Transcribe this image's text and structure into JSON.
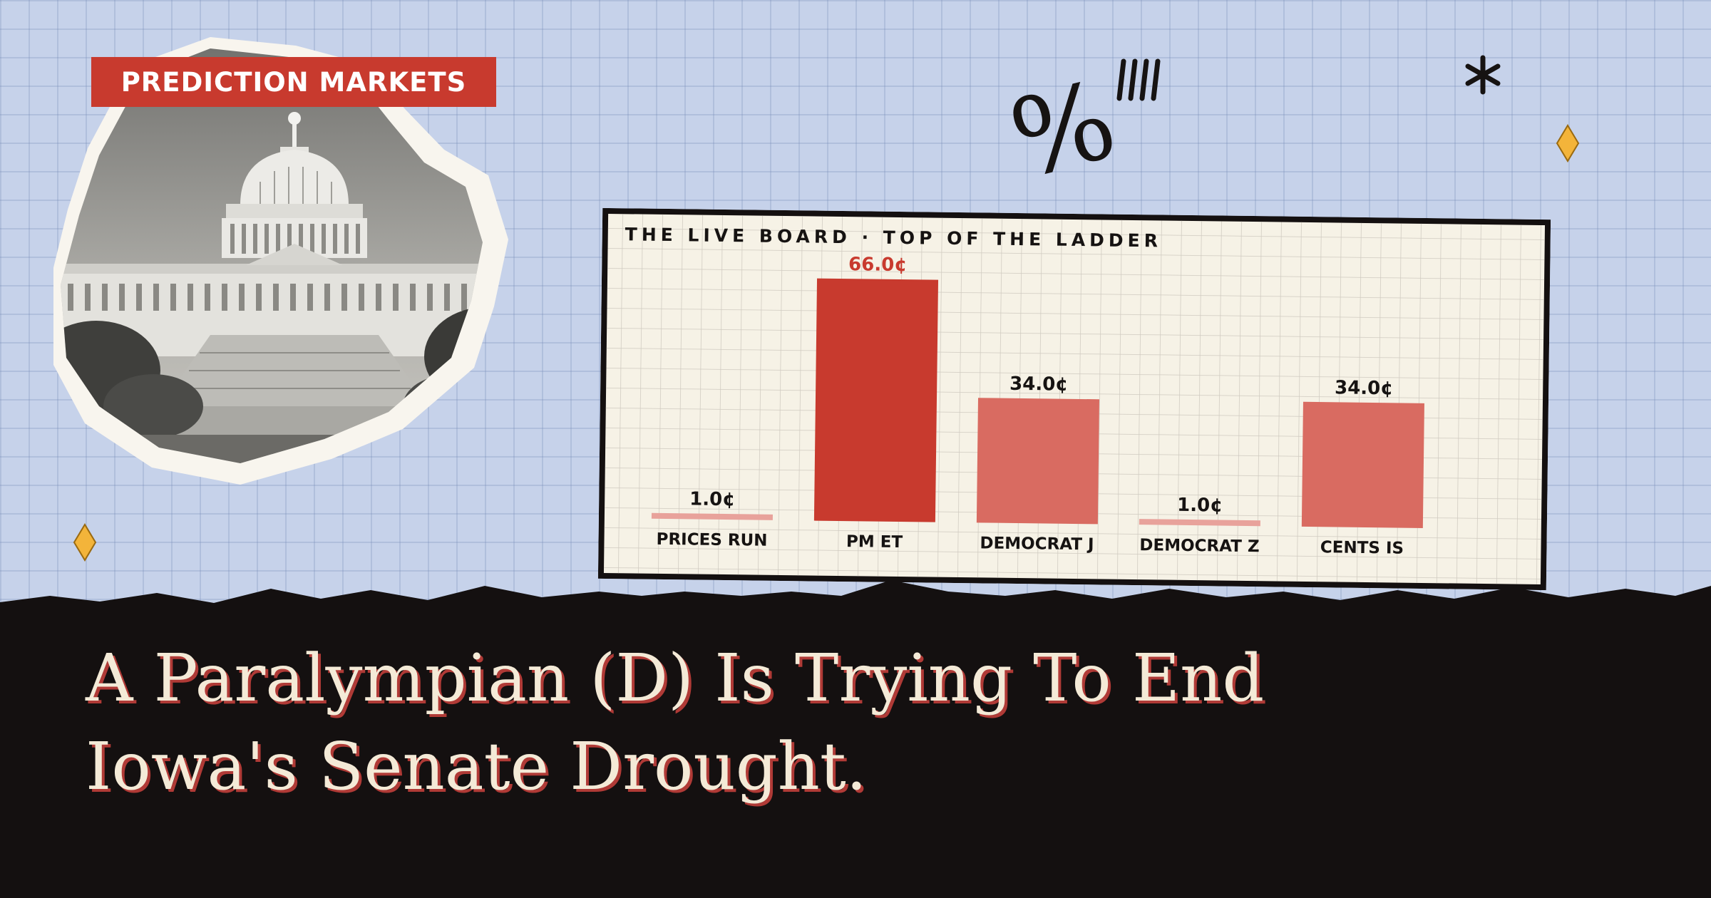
{
  "badge": {
    "label": "PREDICTION MARKETS"
  },
  "photo": {
    "subject": "United States Capitol building, black and white"
  },
  "decor": {
    "symbol": "%",
    "tally_icon": "tally-marks-icon",
    "asterisk_icon": "asterisk-icon",
    "diamond_icon": "diamond-icon",
    "diamond_color": "#f3b43a"
  },
  "colors": {
    "accent": "#c83a2e",
    "bar_light": "#d96b61",
    "bar_faint": "#e8a29b",
    "board_bg": "#f6f2e6",
    "sky": "#c6d2ea",
    "ground": "#141010"
  },
  "chart_data": {
    "type": "bar",
    "title": "THE LIVE BOARD · TOP OF THE LADDER",
    "categories": [
      "PRICES RUN",
      "PM ET",
      "DEMOCRAT J",
      "DEMOCRAT Z",
      "CENTS IS"
    ],
    "values": [
      1.0,
      66.0,
      34.0,
      1.0,
      34.0
    ],
    "value_labels": [
      "1.0¢",
      "66.0¢",
      "34.0¢",
      "1.0¢",
      "34.0¢"
    ],
    "unit": "¢",
    "ylim": [
      0,
      66
    ],
    "highlight_index": 1,
    "grid": true
  },
  "headline": {
    "line1": "A Paralympian (D) Is Trying To End",
    "line2": "Iowa's Senate Drought."
  }
}
